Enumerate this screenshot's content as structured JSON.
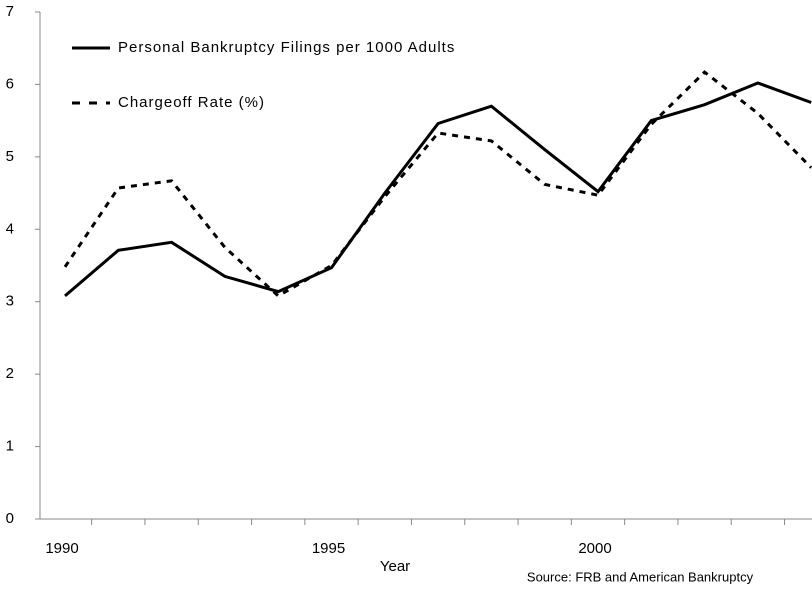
{
  "chart_data": {
    "type": "line",
    "x_label": "Year",
    "source": "Source: FRB and American Bankruptcy",
    "categories": [
      "1990",
      null,
      null,
      null,
      null,
      "1995",
      null,
      null,
      null,
      null,
      "2000",
      null,
      null,
      null,
      null
    ],
    "series": [
      {
        "name": "Personal Bankruptcy Filings per 1000 Adults",
        "color": "#000000",
        "dashed": false,
        "values": [
          3.08,
          3.71,
          3.82,
          3.35,
          3.14,
          3.47,
          4.5,
          5.46,
          5.7,
          5.1,
          4.52,
          5.5,
          5.72,
          6.02,
          5.75
        ]
      },
      {
        "name": "Chargeoff Rate (%)",
        "color": "#000000",
        "dashed": true,
        "values": [
          3.48,
          4.57,
          4.67,
          3.75,
          3.08,
          3.5,
          4.45,
          5.33,
          5.22,
          4.62,
          4.47,
          5.45,
          6.17,
          5.6,
          4.85
        ]
      }
    ],
    "ylim": [
      0,
      7
    ],
    "yticks": [
      0,
      1,
      2,
      3,
      4,
      5,
      6,
      7
    ],
    "grid": false
  }
}
